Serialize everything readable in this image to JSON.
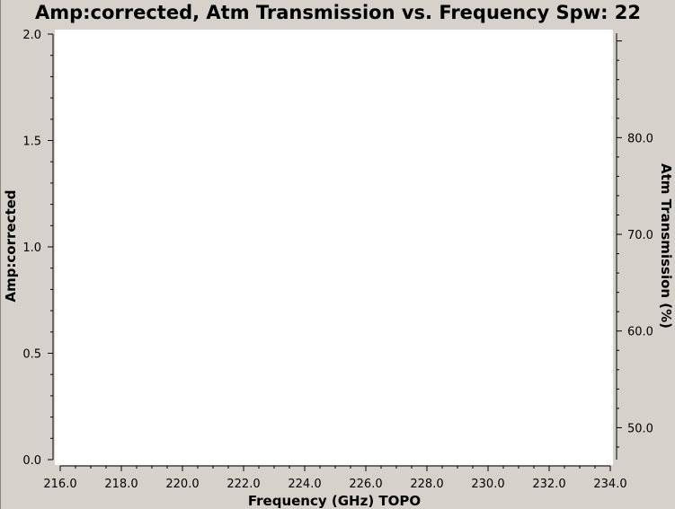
{
  "chart_data": {
    "type": "line",
    "title": "Amp:corrected, Atm Transmission vs. Frequency Spw: 22",
    "xlabel": "Frequency (GHz) TOPO",
    "ylabel": "Amp:corrected",
    "y2label": "Atm Transmission (%)",
    "xlim": [
      216.0,
      234.0
    ],
    "ylim": [
      0.0,
      2.0
    ],
    "y2lim": [
      46.7,
      90.8
    ],
    "xticks": [
      "216.0",
      "218.0",
      "220.0",
      "222.0",
      "224.0",
      "226.0",
      "228.0",
      "230.0",
      "232.0",
      "234.0"
    ],
    "yticks": [
      "0.0",
      "0.5",
      "1.0",
      "1.5",
      "2.0"
    ],
    "y2ticks": [
      "50.0",
      "60.0",
      "70.0",
      "80.0"
    ],
    "series": [],
    "grid": false
  }
}
